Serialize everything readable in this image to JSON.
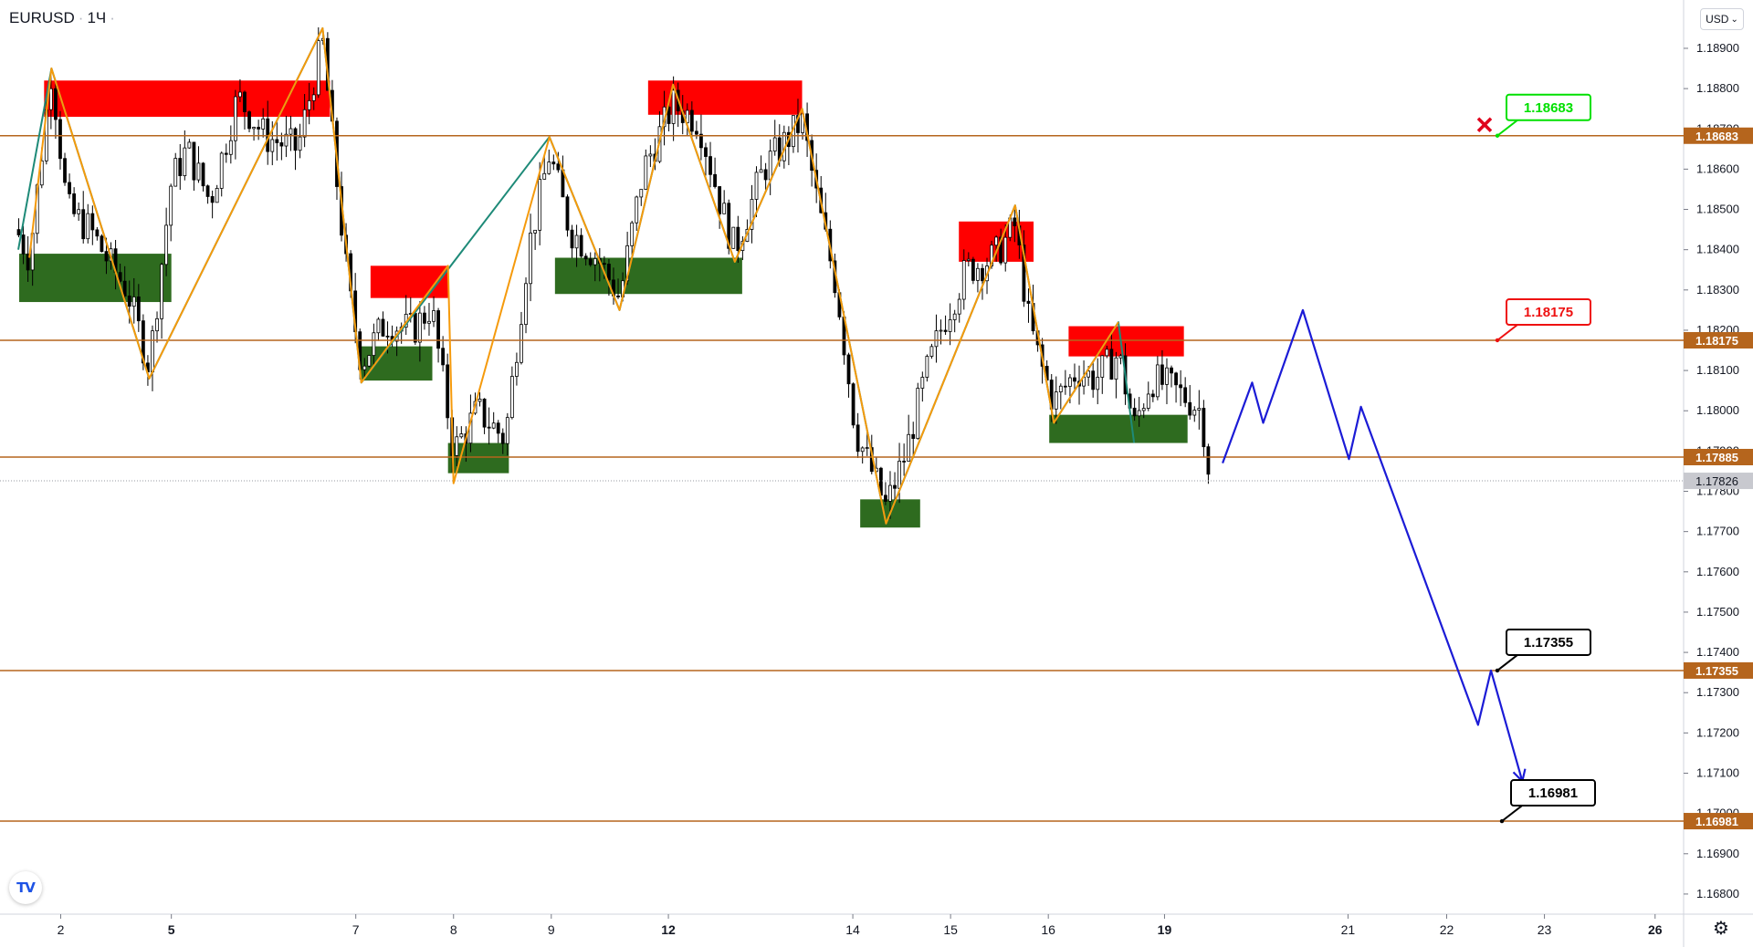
{
  "header": {
    "symbol": "EURUSD",
    "interval": "1Ч",
    "dot": "·",
    "small_dot": "·"
  },
  "currency_button": {
    "label": "USD",
    "chevron": "⌄"
  },
  "logo": {
    "label": "TV"
  },
  "settings": {
    "icon": "gear-icon",
    "glyph": "⚙"
  },
  "colors": {
    "level": "#b5651d",
    "zone_red": "#ff0000",
    "zone_green": "#2e6b1f",
    "zig_orange": "#f59a0c",
    "zig_teal": "#1e8a78",
    "forecast": "#1b1bd6",
    "callout_green": "#00e000",
    "callout_red": "#ee1111",
    "callout_black": "#000000",
    "close_x": "#e0001c"
  },
  "chart_data": {
    "type": "candlestick",
    "symbol": "EURUSD",
    "interval": "1Ч",
    "ylim": [
      1.1675,
      1.1902
    ],
    "y_ticks": [
      "1.16800",
      "1.16900",
      "1.17000",
      "1.17100",
      "1.17200",
      "1.17300",
      "1.17400",
      "1.17500",
      "1.17600",
      "1.17700",
      "1.17800",
      "1.17900",
      "1.18000",
      "1.18100",
      "1.18200",
      "1.18300",
      "1.18400",
      "1.18500",
      "1.18600",
      "1.18700",
      "1.18800",
      "1.18900"
    ],
    "x_ticks": [
      {
        "label": "2",
        "bold": false,
        "t": 4.8
      },
      {
        "label": "5",
        "bold": true,
        "t": 16.8
      },
      {
        "label": "7",
        "bold": false,
        "t": 36.8
      },
      {
        "label": "8",
        "bold": false,
        "t": 47.4
      },
      {
        "label": "9",
        "bold": false,
        "t": 58
      },
      {
        "label": "12",
        "bold": true,
        "t": 70.7
      },
      {
        "label": "14",
        "bold": false,
        "t": 90.7
      },
      {
        "label": "15",
        "bold": false,
        "t": 101.3
      },
      {
        "label": "16",
        "bold": false,
        "t": 111.9
      },
      {
        "label": "19",
        "bold": true,
        "t": 124.5
      },
      {
        "label": "21",
        "bold": false,
        "t": 144.4
      },
      {
        "label": "22",
        "bold": false,
        "t": 155.1
      },
      {
        "label": "23",
        "bold": false,
        "t": 165.7
      },
      {
        "label": "26",
        "bold": true,
        "t": 177.7
      }
    ],
    "levels": [
      {
        "price": 1.18683,
        "label": "1.18683",
        "callout": "1.18683",
        "callout_color": "#00e000",
        "marker": "x"
      },
      {
        "price": 1.18175,
        "label": "1.18175",
        "callout": "1.18175",
        "callout_color": "#ee1111"
      },
      {
        "price": 1.17885,
        "label": "1.17885"
      },
      {
        "price": 1.17355,
        "label": "1.17355",
        "callout": "1.17355",
        "callout_color": "#000000"
      },
      {
        "price": 1.16981,
        "label": "1.16981",
        "callout": "1.16981",
        "callout_color": "#000000"
      }
    ],
    "last_price": {
      "price": 1.17826,
      "label": "1.17826"
    },
    "zones": [
      {
        "type": "supply",
        "t0": 3,
        "t1": 34,
        "p_top": 1.1882,
        "p_bot": 1.1873
      },
      {
        "type": "demand",
        "t0": 0.3,
        "t1": 16.8,
        "p_top": 1.1839,
        "p_bot": 1.1827
      },
      {
        "type": "supply",
        "t0": 38.4,
        "t1": 46.8,
        "p_top": 1.1836,
        "p_bot": 1.1828
      },
      {
        "type": "demand",
        "t0": 37.3,
        "t1": 45.1,
        "p_top": 1.1816,
        "p_bot": 1.18075
      },
      {
        "type": "demand",
        "t0": 46.8,
        "t1": 53.4,
        "p_top": 1.1792,
        "p_bot": 1.17845
      },
      {
        "type": "supply",
        "t0": 68.5,
        "t1": 85.2,
        "p_top": 1.1882,
        "p_bot": 1.18735
      },
      {
        "type": "demand",
        "t0": 58.4,
        "t1": 78.7,
        "p_top": 1.1838,
        "p_bot": 1.1829
      },
      {
        "type": "supply",
        "t0": 102.2,
        "t1": 110.3,
        "p_top": 1.1847,
        "p_bot": 1.1837
      },
      {
        "type": "demand",
        "t0": 91.5,
        "t1": 98,
        "p_top": 1.1778,
        "p_bot": 1.1771
      },
      {
        "type": "supply",
        "t0": 114.1,
        "t1": 126.6,
        "p_top": 1.1821,
        "p_bot": 1.18135
      },
      {
        "type": "demand",
        "t0": 112,
        "t1": 127,
        "p_top": 1.1799,
        "p_bot": 1.1792
      }
    ],
    "zigzag_orange": [
      {
        "t": 1.4,
        "p": 1.1838
      },
      {
        "t": 3.8,
        "p": 1.1885
      },
      {
        "t": 14.4,
        "p": 1.1808
      },
      {
        "t": 33.2,
        "p": 1.1895
      },
      {
        "t": 37.4,
        "p": 1.1807
      },
      {
        "t": 46.8,
        "p": 1.1836
      },
      {
        "t": 47.4,
        "p": 1.1782
      },
      {
        "t": 57.8,
        "p": 1.1868
      },
      {
        "t": 65.4,
        "p": 1.1825
      },
      {
        "t": 71.2,
        "p": 1.1881
      },
      {
        "t": 77.9,
        "p": 1.1837
      },
      {
        "t": 85.2,
        "p": 1.1875
      },
      {
        "t": 94.3,
        "p": 1.1772
      },
      {
        "t": 108.3,
        "p": 1.1851
      },
      {
        "t": 112.5,
        "p": 1.1797
      },
      {
        "t": 119.5,
        "p": 1.1822
      }
    ],
    "zigzag_teal": [
      {
        "t": 0.2,
        "p": 1.184
      },
      {
        "t": 3.8,
        "p": 1.1885
      },
      {
        "t": 14.4,
        "p": 1.1808
      },
      {
        "t": 33.2,
        "p": 1.1895
      },
      {
        "t": 37.4,
        "p": 1.1807
      },
      {
        "t": 57.8,
        "p": 1.1868
      },
      {
        "t": 65.4,
        "p": 1.1825
      },
      {
        "t": 71.2,
        "p": 1.1881
      },
      {
        "t": 77.9,
        "p": 1.1837
      },
      {
        "t": 85.2,
        "p": 1.1875
      },
      {
        "t": 94.3,
        "p": 1.1772
      },
      {
        "t": 108.3,
        "p": 1.1851
      },
      {
        "t": 112.5,
        "p": 1.1797
      },
      {
        "t": 119.5,
        "p": 1.1822
      },
      {
        "t": 121.2,
        "p": 1.1792
      }
    ],
    "forecast": [
      {
        "t": 130.8,
        "p": 1.1787
      },
      {
        "t": 134,
        "p": 1.1807
      },
      {
        "t": 135.2,
        "p": 1.1797
      },
      {
        "t": 139.5,
        "p": 1.1825
      },
      {
        "t": 144.5,
        "p": 1.1788
      },
      {
        "t": 145.8,
        "p": 1.1801
      },
      {
        "t": 158.5,
        "p": 1.1722
      },
      {
        "t": 159.9,
        "p": 1.17355
      },
      {
        "t": 163.3,
        "p": 1.1708
      }
    ],
    "candle_path": [
      {
        "t": 0,
        "p": 1.1845
      },
      {
        "t": 1.4,
        "p": 1.1838
      },
      {
        "t": 3.8,
        "p": 1.1885
      },
      {
        "t": 5.5,
        "p": 1.185
      },
      {
        "t": 8,
        "p": 1.1845
      },
      {
        "t": 10,
        "p": 1.1837
      },
      {
        "t": 12,
        "p": 1.183
      },
      {
        "t": 14.4,
        "p": 1.1811
      },
      {
        "t": 16.8,
        "p": 1.1857
      },
      {
        "t": 18.5,
        "p": 1.1865
      },
      {
        "t": 21,
        "p": 1.1852
      },
      {
        "t": 24,
        "p": 1.1878
      },
      {
        "t": 27,
        "p": 1.1868
      },
      {
        "t": 30.5,
        "p": 1.1865
      },
      {
        "t": 33.2,
        "p": 1.1892
      },
      {
        "t": 34.5,
        "p": 1.1862
      },
      {
        "t": 36,
        "p": 1.183
      },
      {
        "t": 37.4,
        "p": 1.1812
      },
      {
        "t": 40,
        "p": 1.1822
      },
      {
        "t": 43,
        "p": 1.182
      },
      {
        "t": 45,
        "p": 1.1826
      },
      {
        "t": 47.4,
        "p": 1.179
      },
      {
        "t": 50,
        "p": 1.18
      },
      {
        "t": 53,
        "p": 1.1793
      },
      {
        "t": 55.5,
        "p": 1.184
      },
      {
        "t": 57.8,
        "p": 1.1864
      },
      {
        "t": 60,
        "p": 1.1845
      },
      {
        "t": 63,
        "p": 1.1838
      },
      {
        "t": 65.4,
        "p": 1.1828
      },
      {
        "t": 68,
        "p": 1.186
      },
      {
        "t": 71.2,
        "p": 1.1876
      },
      {
        "t": 74,
        "p": 1.1872
      },
      {
        "t": 76.5,
        "p": 1.185
      },
      {
        "t": 77.9,
        "p": 1.184
      },
      {
        "t": 81,
        "p": 1.186
      },
      {
        "t": 85.2,
        "p": 1.1872
      },
      {
        "t": 87,
        "p": 1.185
      },
      {
        "t": 89,
        "p": 1.183
      },
      {
        "t": 91,
        "p": 1.1795
      },
      {
        "t": 94.3,
        "p": 1.1776
      },
      {
        "t": 96.5,
        "p": 1.179
      },
      {
        "t": 98.5,
        "p": 1.1808
      },
      {
        "t": 100.5,
        "p": 1.1822
      },
      {
        "t": 103,
        "p": 1.1835
      },
      {
        "t": 106,
        "p": 1.1838
      },
      {
        "t": 108.3,
        "p": 1.1846
      },
      {
        "t": 109.8,
        "p": 1.1822
      },
      {
        "t": 111,
        "p": 1.1812
      },
      {
        "t": 112.5,
        "p": 1.1802
      },
      {
        "t": 115,
        "p": 1.181
      },
      {
        "t": 117,
        "p": 1.1808
      },
      {
        "t": 119.5,
        "p": 1.1814
      },
      {
        "t": 121.2,
        "p": 1.1796
      },
      {
        "t": 123,
        "p": 1.1808
      },
      {
        "t": 125,
        "p": 1.1806
      },
      {
        "t": 127,
        "p": 1.1803
      },
      {
        "t": 128.5,
        "p": 1.18
      },
      {
        "t": 129.5,
        "p": 1.1782
      }
    ]
  }
}
